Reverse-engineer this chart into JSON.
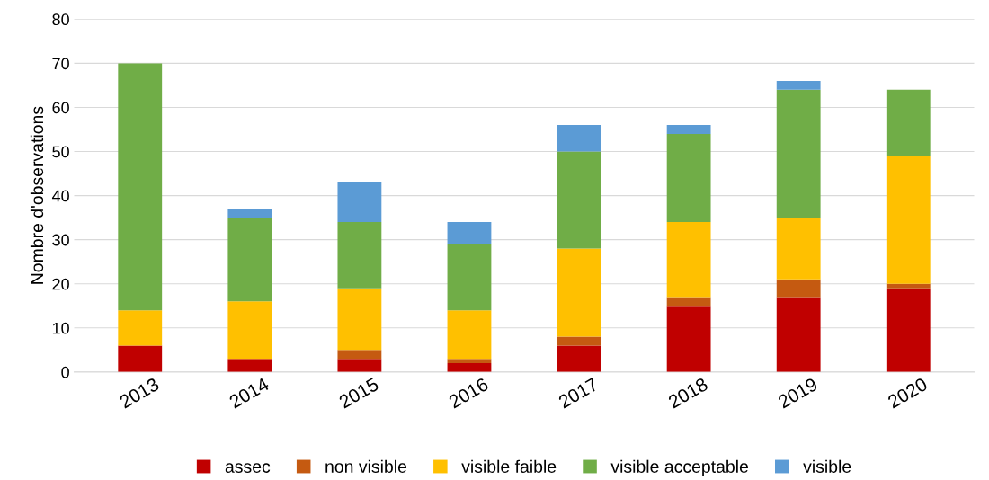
{
  "chart_data": {
    "type": "bar",
    "stacked": true,
    "ylabel": "Nombre d'observations",
    "categories": [
      "2013",
      "2014",
      "2015",
      "2016",
      "2017",
      "2018",
      "2019",
      "2020"
    ],
    "series": [
      {
        "name": "assec",
        "color": "#c00000",
        "values": [
          6,
          3,
          3,
          2,
          6,
          15,
          17,
          19
        ]
      },
      {
        "name": "non visible",
        "color": "#c55a11",
        "values": [
          0,
          0,
          2,
          1,
          2,
          2,
          4,
          1
        ]
      },
      {
        "name": "visible faible",
        "color": "#ffc000",
        "values": [
          8,
          13,
          14,
          11,
          20,
          17,
          14,
          29
        ]
      },
      {
        "name": "visible acceptable",
        "color": "#70ad47",
        "values": [
          56,
          19,
          15,
          15,
          22,
          20,
          29,
          15
        ]
      },
      {
        "name": "visible",
        "color": "#5b9bd5",
        "values": [
          0,
          2,
          9,
          5,
          6,
          2,
          2,
          0
        ]
      }
    ],
    "ylim": [
      0,
      80
    ],
    "yticks": [
      0,
      10,
      20,
      30,
      40,
      50,
      60,
      70,
      80
    ],
    "grid": "y",
    "legend": "bottom"
  }
}
